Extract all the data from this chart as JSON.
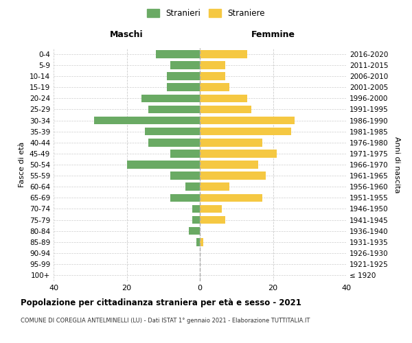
{
  "age_groups": [
    "100+",
    "95-99",
    "90-94",
    "85-89",
    "80-84",
    "75-79",
    "70-74",
    "65-69",
    "60-64",
    "55-59",
    "50-54",
    "45-49",
    "40-44",
    "35-39",
    "30-34",
    "25-29",
    "20-24",
    "15-19",
    "10-14",
    "5-9",
    "0-4"
  ],
  "birth_years": [
    "≤ 1920",
    "1921-1925",
    "1926-1930",
    "1931-1935",
    "1936-1940",
    "1941-1945",
    "1946-1950",
    "1951-1955",
    "1956-1960",
    "1961-1965",
    "1966-1970",
    "1971-1975",
    "1976-1980",
    "1981-1985",
    "1986-1990",
    "1991-1995",
    "1996-2000",
    "2001-2005",
    "2006-2010",
    "2011-2015",
    "2016-2020"
  ],
  "maschi": [
    0,
    0,
    0,
    1,
    3,
    2,
    2,
    8,
    4,
    8,
    20,
    8,
    14,
    15,
    29,
    14,
    16,
    9,
    9,
    8,
    12
  ],
  "femmine": [
    0,
    0,
    0,
    1,
    0,
    7,
    6,
    17,
    8,
    18,
    16,
    21,
    17,
    25,
    26,
    14,
    13,
    8,
    7,
    7,
    13
  ],
  "maschi_color": "#6aaa64",
  "femmine_color": "#f5c842",
  "background_color": "#ffffff",
  "grid_color": "#cccccc",
  "center_line_color": "#aaaaaa",
  "title": "Popolazione per cittadinanza straniera per età e sesso - 2021",
  "subtitle": "COMUNE DI COREGLIA ANTELMINELLI (LU) - Dati ISTAT 1° gennaio 2021 - Elaborazione TUTTITALIA.IT",
  "col_left": "Maschi",
  "col_right": "Femmine",
  "ylabel_left": "Fasce di età",
  "ylabel_right": "Anni di nascita",
  "legend_stranieri": "Stranieri",
  "legend_straniere": "Straniere",
  "xlim": 40,
  "bar_height": 0.72
}
